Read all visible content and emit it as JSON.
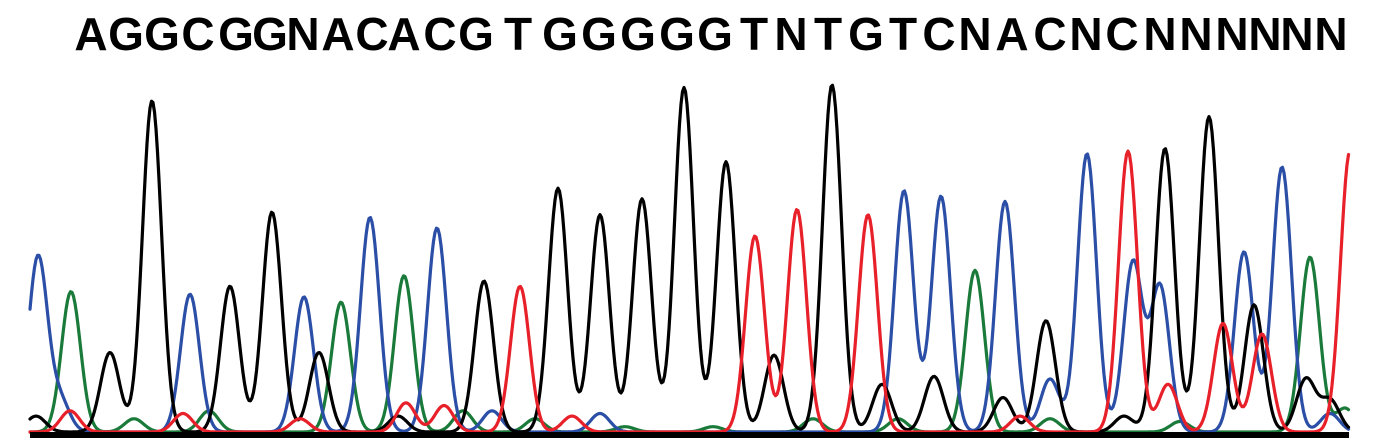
{
  "chart_data": {
    "type": "line",
    "sequence": "AGGCGGNACACGTGGGGGTNTGTCNACNCNNNNNN",
    "base_calls": [
      "A",
      "G",
      "G",
      "C",
      "G",
      "G",
      "N",
      "A",
      "C",
      "A",
      "C",
      "G",
      "T",
      "G",
      "G",
      "G",
      "G",
      "G",
      "T",
      "N",
      "T",
      "G",
      "T",
      "C",
      "N",
      "A",
      "C",
      "N",
      "C",
      "N",
      "N",
      "N",
      "N",
      "N",
      "N"
    ],
    "series": [
      {
        "name": "A",
        "color": "#1a7a3a",
        "peaks": [
          [
            71,
            0.53
          ],
          [
            134,
            0.05
          ],
          [
            209,
            0.08
          ],
          [
            341,
            0.49
          ],
          [
            404,
            0.59
          ],
          [
            463,
            0.08
          ],
          [
            535,
            0.05
          ],
          [
            625,
            0.02
          ],
          [
            713,
            0.02
          ],
          [
            813,
            0.05
          ],
          [
            898,
            0.05
          ],
          [
            975,
            0.61
          ],
          [
            1050,
            0.05
          ],
          [
            1180,
            0.04
          ],
          [
            1310,
            0.66
          ],
          [
            1345,
            0.09
          ]
        ]
      },
      {
        "name": "C",
        "color": "#2b4ea6",
        "peaks": [
          [
            38,
            0.66
          ],
          [
            60,
            0.12
          ],
          [
            190,
            0.52
          ],
          [
            304,
            0.51
          ],
          [
            370,
            0.81
          ],
          [
            437,
            0.77
          ],
          [
            492,
            0.08
          ],
          [
            600,
            0.07
          ],
          [
            904,
            0.91
          ],
          [
            941,
            0.89
          ],
          [
            1005,
            0.87
          ],
          [
            1050,
            0.2
          ],
          [
            1087,
            1.05
          ],
          [
            1133,
            0.64
          ],
          [
            1160,
            0.55
          ],
          [
            1244,
            0.68
          ],
          [
            1282,
            1.0
          ],
          [
            1330,
            0.07
          ]
        ]
      },
      {
        "name": "G",
        "color": "#000000",
        "peaks": [
          [
            36,
            0.06
          ],
          [
            110,
            0.3
          ],
          [
            152,
            1.25
          ],
          [
            230,
            0.55
          ],
          [
            272,
            0.83
          ],
          [
            319,
            0.3
          ],
          [
            398,
            0.06
          ],
          [
            484,
            0.57
          ],
          [
            558,
            0.92
          ],
          [
            600,
            0.82
          ],
          [
            642,
            0.88
          ],
          [
            684,
            1.3
          ],
          [
            726,
            1.02
          ],
          [
            774,
            0.29
          ],
          [
            832,
            1.31
          ],
          [
            882,
            0.18
          ],
          [
            934,
            0.21
          ],
          [
            1003,
            0.13
          ],
          [
            1046,
            0.42
          ],
          [
            1124,
            0.06
          ],
          [
            1165,
            1.07
          ],
          [
            1209,
            1.19
          ],
          [
            1254,
            0.48
          ],
          [
            1306,
            0.2
          ],
          [
            1330,
            0.12
          ]
        ]
      },
      {
        "name": "T",
        "color": "#e8202a",
        "peaks": [
          [
            70,
            0.08
          ],
          [
            183,
            0.07
          ],
          [
            300,
            0.05
          ],
          [
            406,
            0.11
          ],
          [
            444,
            0.1
          ],
          [
            520,
            0.55
          ],
          [
            572,
            0.06
          ],
          [
            755,
            0.74
          ],
          [
            797,
            0.84
          ],
          [
            868,
            0.82
          ],
          [
            1020,
            0.06
          ],
          [
            1128,
            1.06
          ],
          [
            1168,
            0.18
          ],
          [
            1223,
            0.41
          ],
          [
            1262,
            0.37
          ],
          [
            1350,
            1.06
          ]
        ]
      }
    ],
    "baseline": true,
    "grid": false,
    "legend": "none"
  }
}
